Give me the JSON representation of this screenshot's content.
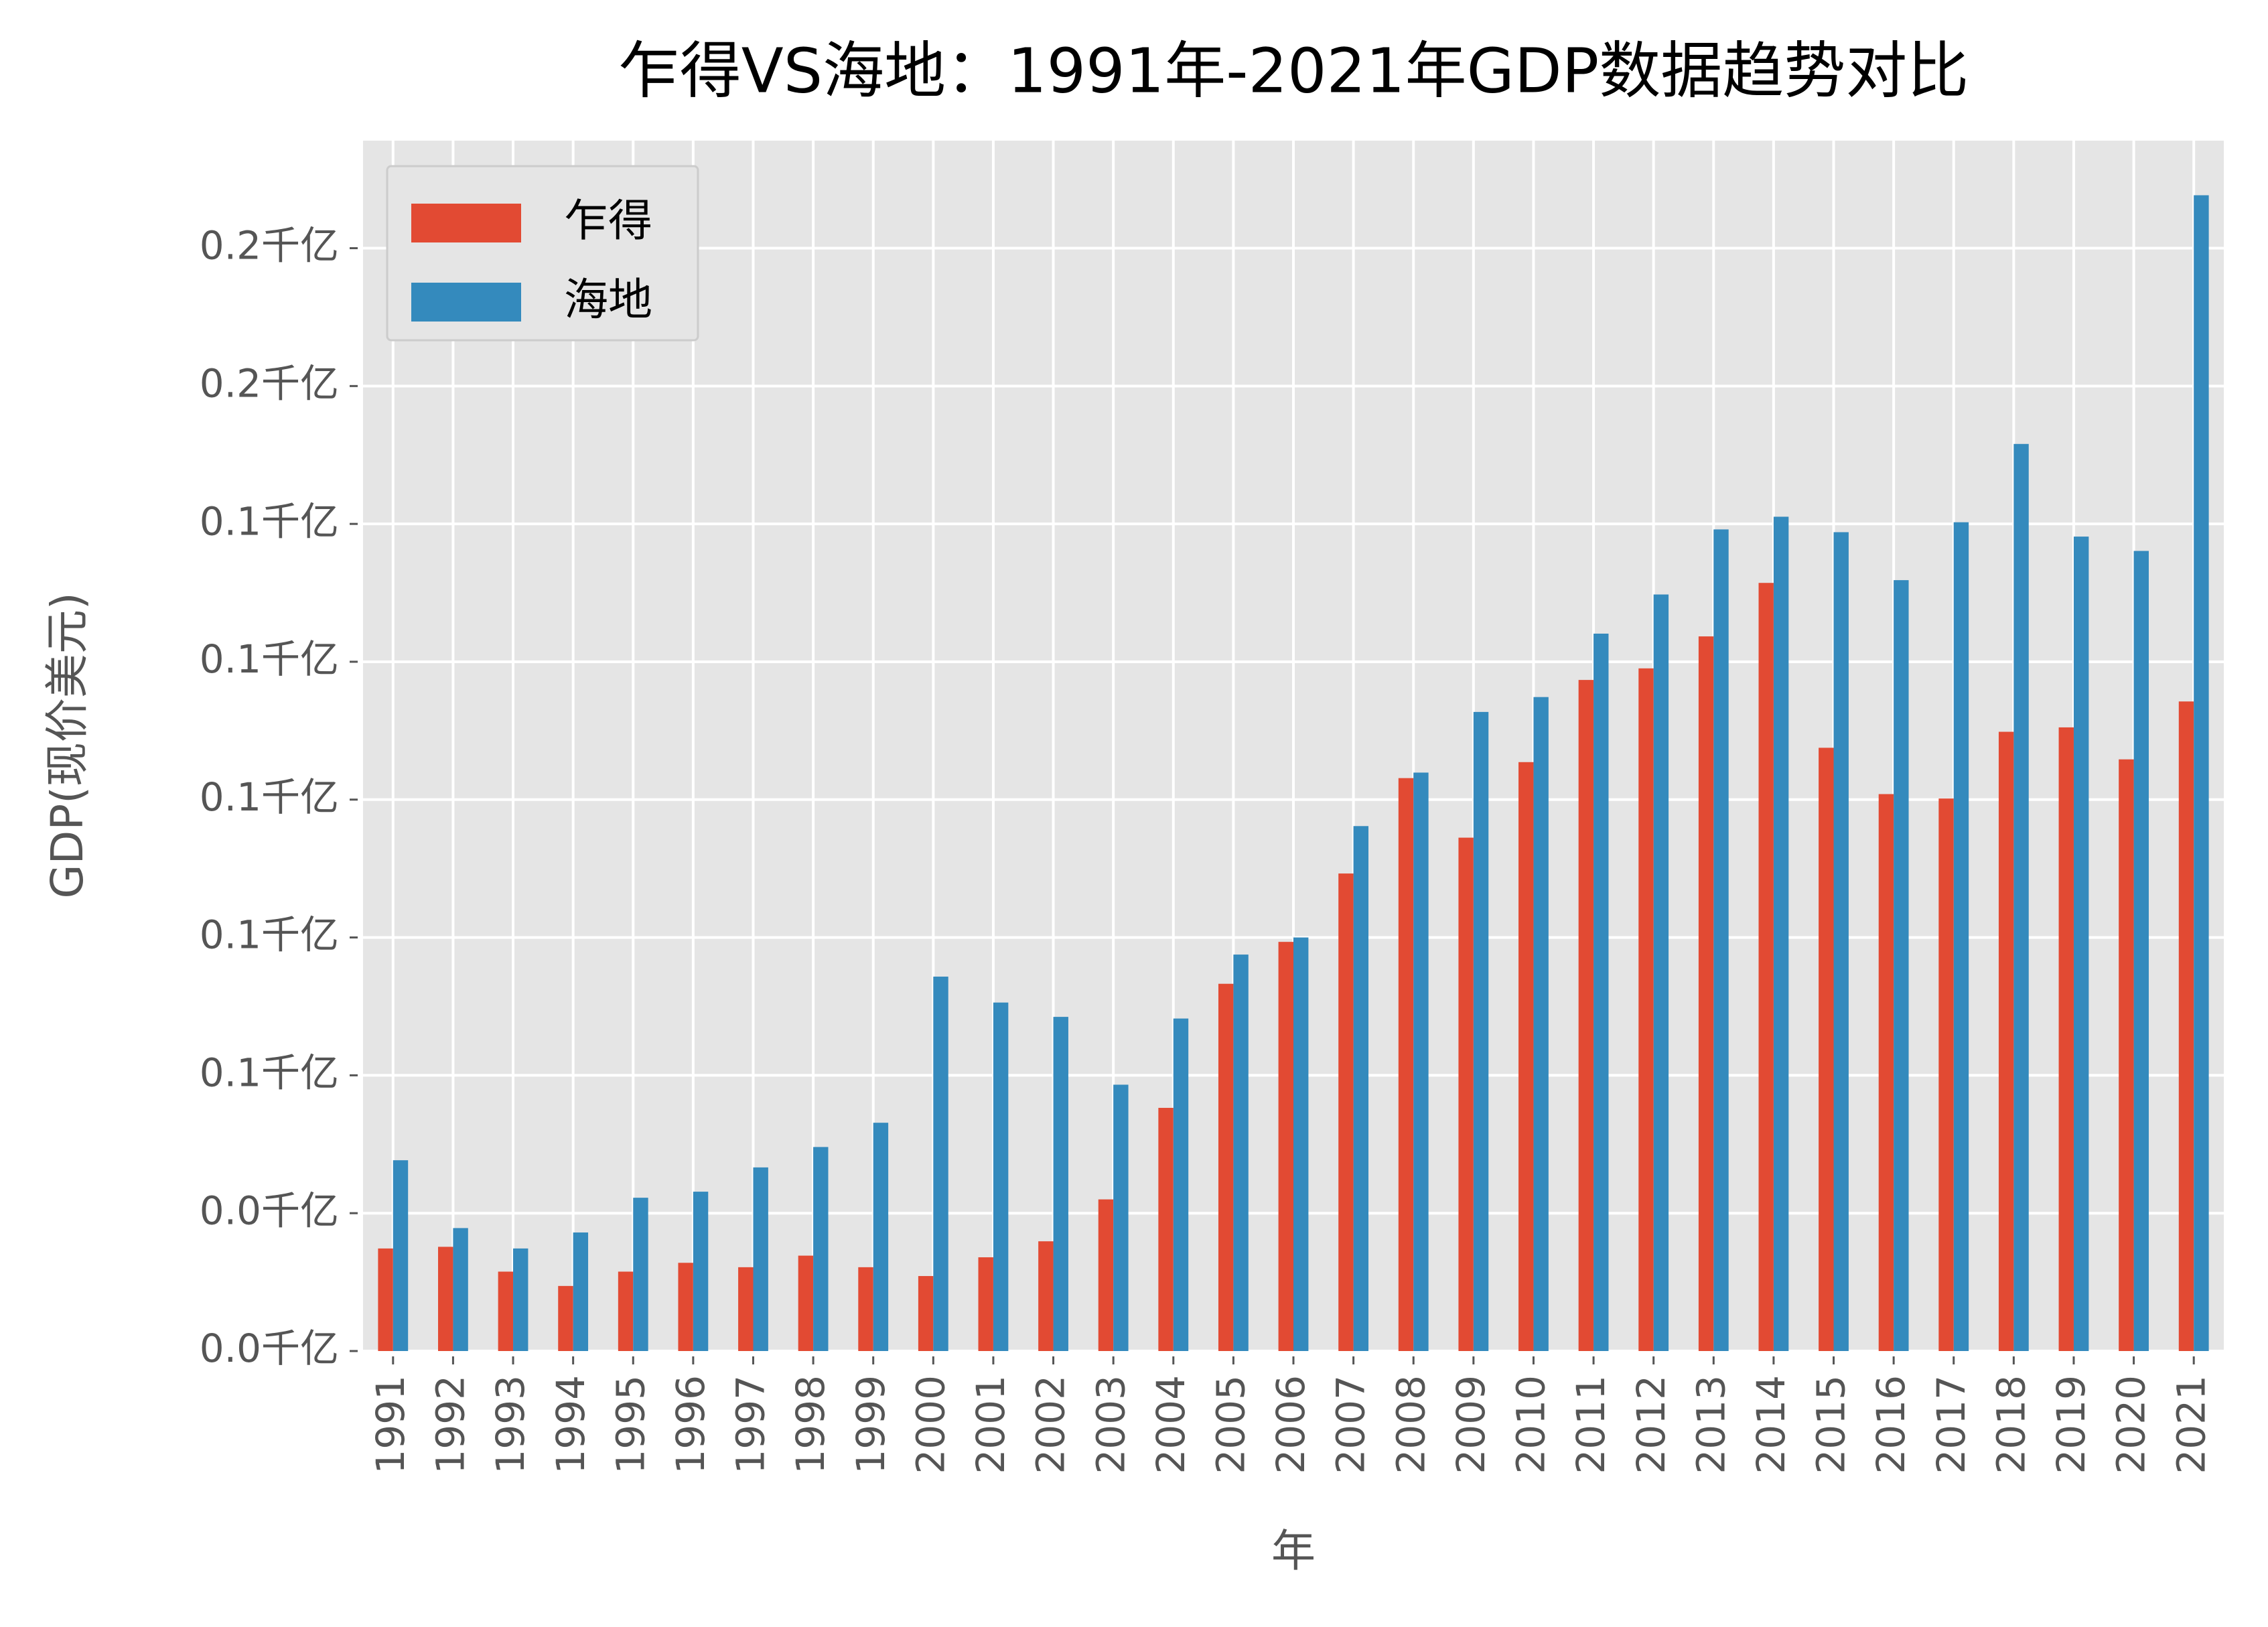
{
  "chart_data": {
    "type": "bar",
    "title": "乍得VS海地：1991年-2021年GDP数据趋势对比",
    "xlabel": "年",
    "ylabel": "GDP(现价美元)",
    "categories": [
      "1991",
      "1992",
      "1993",
      "1994",
      "1995",
      "1996",
      "1997",
      "1998",
      "1999",
      "2000",
      "2001",
      "2002",
      "2003",
      "2004",
      "2005",
      "2006",
      "2007",
      "2008",
      "2009",
      "2010",
      "2011",
      "2012",
      "2013",
      "2014",
      "2015",
      "2016",
      "2017",
      "2018",
      "2019",
      "2020",
      "2021"
    ],
    "series": [
      {
        "name": "乍得",
        "color": "#E24A33",
        "values": [
          0.0186,
          0.0189,
          0.0144,
          0.0118,
          0.0144,
          0.016,
          0.0152,
          0.0173,
          0.0152,
          0.0136,
          0.017,
          0.0199,
          0.0275,
          0.0441,
          0.0666,
          0.0742,
          0.0866,
          0.1039,
          0.0931,
          0.1068,
          0.1217,
          0.1238,
          0.1296,
          0.1393,
          0.1094,
          0.101,
          0.1002,
          0.1123,
          0.1131,
          0.1073,
          0.1178
        ]
      },
      {
        "name": "海地",
        "color": "#348ABD",
        "values": [
          0.0346,
          0.0223,
          0.0186,
          0.0215,
          0.0278,
          0.0289,
          0.0333,
          0.037,
          0.0414,
          0.0679,
          0.0632,
          0.0606,
          0.0483,
          0.0603,
          0.0719,
          0.075,
          0.0952,
          0.1049,
          0.1159,
          0.1186,
          0.1301,
          0.1372,
          0.149,
          0.1513,
          0.1485,
          0.1398,
          0.1503,
          0.1645,
          0.1477,
          0.1451,
          0.2096
        ]
      }
    ],
    "ylim": [
      0,
      0.2195
    ],
    "yticks": [
      {
        "value": 0,
        "label": "0.0千亿"
      },
      {
        "value": 0.025,
        "label": "0.0千亿"
      },
      {
        "value": 0.05,
        "label": "0.1千亿"
      },
      {
        "value": 0.075,
        "label": "0.1千亿"
      },
      {
        "value": 0.1,
        "label": "0.1千亿"
      },
      {
        "value": 0.125,
        "label": "0.1千亿"
      },
      {
        "value": 0.15,
        "label": "0.1千亿"
      },
      {
        "value": 0.175,
        "label": "0.2千亿"
      },
      {
        "value": 0.2,
        "label": "0.2千亿"
      }
    ],
    "grid": true,
    "legend": "upper left"
  }
}
